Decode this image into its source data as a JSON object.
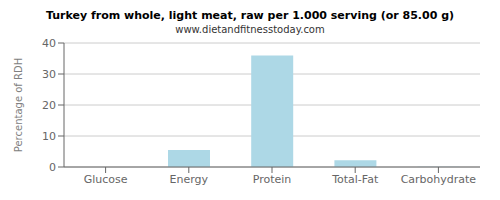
{
  "chart_data": {
    "type": "bar",
    "title": "Turkey from whole, light meat, raw per 1.000 serving (or 85.00 g)",
    "subtitle": "www.dietandfitnesstoday.com",
    "categories": [
      "Glucose",
      "Energy",
      "Protein",
      "Total-Fat",
      "Carbohydrate"
    ],
    "values": [
      0,
      5.5,
      36,
      2.2,
      0.1
    ],
    "color": "#add8e6",
    "ylabel": "Percentage of RDH",
    "ylim": [
      0,
      40
    ],
    "yticks": [
      0,
      10,
      20,
      30,
      40
    ],
    "grid": true
  }
}
